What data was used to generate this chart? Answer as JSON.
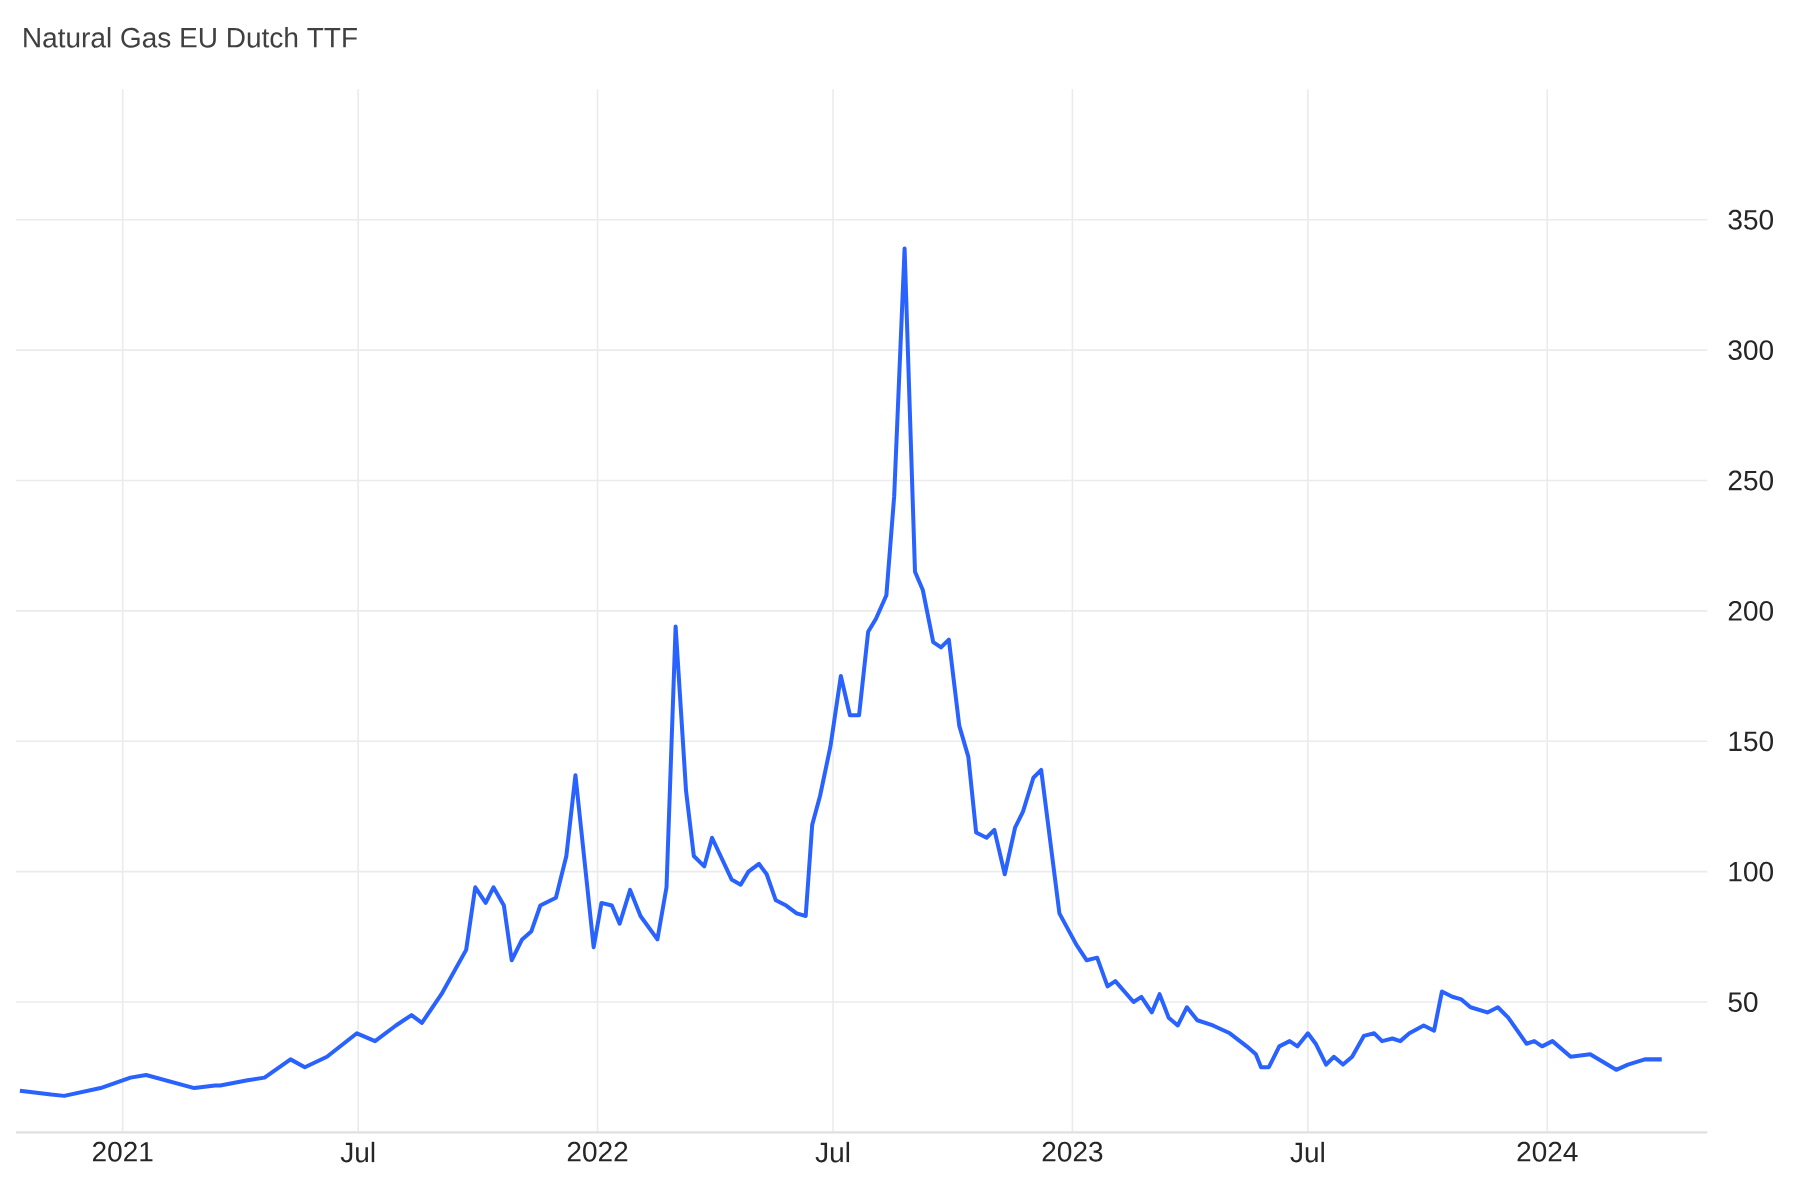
{
  "chart_data": {
    "type": "line",
    "title": "Natural Gas EU Dutch TTF",
    "x": [
      "2020-10-14",
      "2020-11-07",
      "2020-11-17",
      "2020-12-15",
      "2021-01-07",
      "2021-01-19",
      "2021-02-25",
      "2021-03-13",
      "2021-03-17",
      "2021-04-07",
      "2021-04-20",
      "2021-05-10",
      "2021-05-21",
      "2021-06-07",
      "2021-06-30",
      "2021-07-14",
      "2021-07-30",
      "2021-08-11",
      "2021-08-19",
      "2021-09-03",
      "2021-09-22",
      "2021-09-29",
      "2021-10-07",
      "2021-10-13",
      "2021-10-21",
      "2021-10-27",
      "2021-11-04",
      "2021-11-11",
      "2021-11-18",
      "2021-11-30",
      "2021-12-08",
      "2021-12-15",
      "2021-12-29",
      "2022-01-04",
      "2022-01-12",
      "2022-01-18",
      "2022-01-26",
      "2022-02-03",
      "2022-02-16",
      "2022-02-23",
      "2022-03-02",
      "2022-03-10",
      "2022-03-16",
      "2022-03-24",
      "2022-03-30",
      "2022-04-14",
      "2022-04-21",
      "2022-04-27",
      "2022-05-05",
      "2022-05-11",
      "2022-05-18",
      "2022-05-26",
      "2022-06-03",
      "2022-06-10",
      "2022-06-15",
      "2022-06-21",
      "2022-06-29",
      "2022-07-07",
      "2022-07-14",
      "2022-07-21",
      "2022-07-28",
      "2022-08-03",
      "2022-08-11",
      "2022-08-17",
      "2022-08-25",
      "2022-09-02",
      "2022-09-08",
      "2022-09-16",
      "2022-09-22",
      "2022-09-28",
      "2022-10-06",
      "2022-10-13",
      "2022-10-19",
      "2022-10-27",
      "2022-11-02",
      "2022-11-10",
      "2022-11-18",
      "2022-11-24",
      "2022-12-02",
      "2022-12-08",
      "2022-12-22",
      "2023-01-04",
      "2023-01-12",
      "2023-01-20",
      "2023-01-28",
      "2023-02-03",
      "2023-02-17",
      "2023-02-23",
      "2023-03-03",
      "2023-03-09",
      "2023-03-16",
      "2023-03-23",
      "2023-03-30",
      "2023-04-07",
      "2023-04-19",
      "2023-05-02",
      "2023-05-15",
      "2023-05-22",
      "2023-05-26",
      "2023-06-01",
      "2023-06-09",
      "2023-06-17",
      "2023-06-23",
      "2023-07-01",
      "2023-07-07",
      "2023-07-15",
      "2023-07-21",
      "2023-07-28",
      "2023-08-04",
      "2023-08-13",
      "2023-08-21",
      "2023-08-27",
      "2023-09-04",
      "2023-09-10",
      "2023-09-17",
      "2023-09-28",
      "2023-10-06",
      "2023-10-12",
      "2023-10-20",
      "2023-10-27",
      "2023-11-03",
      "2023-11-16",
      "2023-11-24",
      "2023-12-02",
      "2023-12-16",
      "2023-12-22",
      "2023-12-28",
      "2024-01-05",
      "2024-01-19",
      "2024-02-03",
      "2024-02-23",
      "2024-03-03",
      "2024-03-16",
      "2024-03-23",
      "2024-03-29"
    ],
    "series": [
      {
        "color": "#2962ff",
        "values": [
          16,
          14.5,
          14,
          17,
          21,
          22,
          17,
          18,
          18,
          20,
          21,
          28,
          25,
          29,
          38,
          35,
          41,
          45,
          42,
          53,
          70,
          94,
          88,
          94,
          87,
          66,
          74,
          77,
          87,
          90,
          106,
          137,
          71,
          88,
          87,
          80,
          93,
          83,
          74,
          94,
          194,
          131,
          106,
          102,
          113,
          97,
          95,
          100,
          103,
          99,
          89,
          87,
          84,
          83,
          118,
          129,
          148,
          175,
          160,
          160,
          192,
          197,
          206,
          244,
          339,
          215,
          208,
          188,
          186,
          189,
          156,
          144,
          115,
          113,
          116,
          99,
          117,
          123,
          136,
          139,
          84,
          72,
          66,
          67,
          56,
          58,
          50,
          52,
          46,
          53,
          44,
          41,
          48,
          43,
          41,
          38,
          33,
          30,
          25,
          25,
          33,
          35,
          33,
          38,
          34,
          26,
          29,
          26,
          29,
          37,
          38,
          35,
          36,
          35,
          38,
          41,
          39,
          54,
          52,
          51,
          48,
          46,
          48,
          44,
          34,
          35,
          33,
          35,
          29,
          30,
          24,
          26,
          28,
          28,
          28
        ]
      }
    ],
    "xlim": [
      "2020-10-11",
      "2024-05-03"
    ],
    "xticks": [
      {
        "value": "2021-01-01",
        "label": "2021"
      },
      {
        "value": "2021-07-01",
        "label": "Jul"
      },
      {
        "value": "2022-01-01",
        "label": "2022"
      },
      {
        "value": "2022-07-01",
        "label": "Jul"
      },
      {
        "value": "2023-01-01",
        "label": "2023"
      },
      {
        "value": "2023-07-01",
        "label": "Jul"
      },
      {
        "value": "2024-01-01",
        "label": "2024"
      }
    ],
    "ylim": [
      0,
      400
    ],
    "yticks": [
      50,
      100,
      150,
      200,
      250,
      300,
      350
    ],
    "grid": true,
    "marker": "none",
    "line_style": "solid"
  }
}
